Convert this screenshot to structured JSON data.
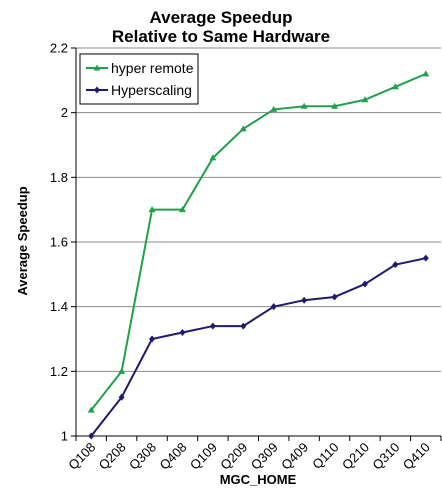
{
  "chart_data": {
    "type": "line",
    "title_line1": "Average Speedup",
    "title_line2": "Relative to Same Hardware",
    "xlabel": "MGC_HOME",
    "ylabel": "Average Speedup",
    "ylim": [
      1,
      2.2
    ],
    "yticks": [
      "1",
      "1.2",
      "1.4",
      "1.6",
      "1.8",
      "2",
      "2.2"
    ],
    "categories": [
      "Q108",
      "Q208",
      "Q308",
      "Q408",
      "Q109",
      "Q209",
      "Q309",
      "Q409",
      "Q110",
      "Q210",
      "Q310",
      "Q410"
    ],
    "grid": "horizontal",
    "legend_position": "top-left",
    "series": [
      {
        "name": "hyper remote",
        "color": "#21a04a",
        "marker": "triangle",
        "values": [
          1.08,
          1.2,
          1.7,
          1.7,
          1.86,
          1.95,
          2.01,
          2.02,
          2.02,
          2.04,
          2.08,
          2.12
        ]
      },
      {
        "name": "Hyperscaling",
        "color": "#1f1a6b",
        "marker": "diamond",
        "values": [
          1.0,
          1.12,
          1.3,
          1.32,
          1.34,
          1.34,
          1.4,
          1.42,
          1.43,
          1.47,
          1.53,
          1.55
        ]
      }
    ]
  }
}
